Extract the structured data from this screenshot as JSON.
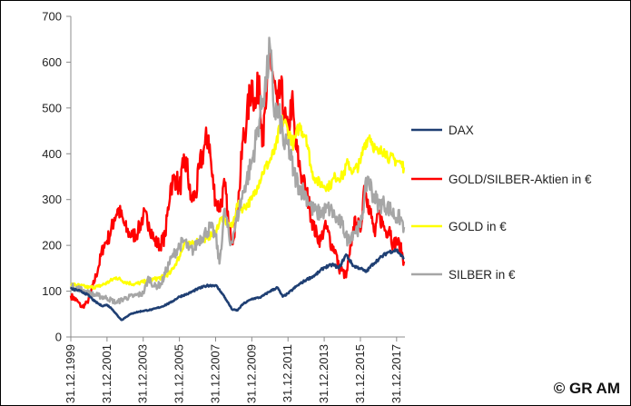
{
  "copyright": "© GR AM",
  "chart_data": {
    "type": "line",
    "title": "",
    "xlabel": "",
    "ylabel": "",
    "ylim": [
      0,
      700
    ],
    "yticks": [
      0,
      100,
      200,
      300,
      400,
      500,
      600,
      700
    ],
    "xlim": [
      1999.99,
      2018.45
    ],
    "xticks": [
      {
        "x": 1999.99,
        "label": "31.12.1999"
      },
      {
        "x": 2001.99,
        "label": "31.12.2001"
      },
      {
        "x": 2003.99,
        "label": "31.12.2003"
      },
      {
        "x": 2005.99,
        "label": "31.12.2005"
      },
      {
        "x": 2007.99,
        "label": "31.12.2007"
      },
      {
        "x": 2009.99,
        "label": "31.12.2009"
      },
      {
        "x": 2011.99,
        "label": "31.12.2011"
      },
      {
        "x": 2013.99,
        "label": "31.12.2013"
      },
      {
        "x": 2015.99,
        "label": "31.12.2015"
      },
      {
        "x": 2017.99,
        "label": "31.12.2017"
      }
    ],
    "grid": false,
    "legend_position": "right",
    "series": [
      {
        "name": "DAX",
        "color": "#1f3f73",
        "x": [
          1999.99,
          2000.3,
          2000.7,
          2001.0,
          2001.3,
          2001.7,
          2002.0,
          2002.3,
          2002.6,
          2002.8,
          2003.2,
          2003.5,
          2003.99,
          2004.5,
          2005.0,
          2005.5,
          2005.99,
          2006.5,
          2007.0,
          2007.5,
          2007.99,
          2008.3,
          2008.6,
          2008.9,
          2009.2,
          2009.5,
          2009.99,
          2010.5,
          2011.0,
          2011.4,
          2011.7,
          2011.99,
          2012.5,
          2013.0,
          2013.5,
          2013.99,
          2014.5,
          2014.8,
          2015.2,
          2015.6,
          2015.99,
          2016.3,
          2016.7,
          2017.0,
          2017.5,
          2017.99,
          2018.2,
          2018.4
        ],
        "values": [
          105,
          103,
          97,
          90,
          78,
          68,
          70,
          60,
          45,
          37,
          48,
          53,
          57,
          60,
          66,
          75,
          88,
          95,
          105,
          112,
          113,
          98,
          80,
          60,
          58,
          72,
          83,
          87,
          100,
          108,
          88,
          95,
          112,
          125,
          135,
          152,
          158,
          150,
          180,
          155,
          150,
          142,
          160,
          170,
          185,
          190,
          180,
          170
        ]
      },
      {
        "name": "GOLD/SILBER-Aktien in €",
        "color": "#ff0000",
        "x": [
          1999.99,
          2000.3,
          2000.6,
          2000.9,
          2001.2,
          2001.5,
          2001.8,
          2001.99,
          2002.2,
          2002.4,
          2002.6,
          2002.9,
          2003.1,
          2003.4,
          2003.7,
          2003.99,
          2004.3,
          2004.6,
          2004.9,
          2005.2,
          2005.5,
          2005.8,
          2005.99,
          2006.2,
          2006.4,
          2006.6,
          2006.9,
          2007.1,
          2007.4,
          2007.6,
          2007.8,
          2007.99,
          2008.2,
          2008.5,
          2008.7,
          2008.9,
          2009.1,
          2009.3,
          2009.5,
          2009.7,
          2009.99,
          2010.2,
          2010.4,
          2010.6,
          2010.8,
          2010.99,
          2011.2,
          2011.4,
          2011.6,
          2011.8,
          2011.99,
          2012.2,
          2012.4,
          2012.6,
          2012.8,
          2012.99,
          2013.2,
          2013.4,
          2013.6,
          2013.8,
          2013.99,
          2014.2,
          2014.4,
          2014.6,
          2014.8,
          2014.99,
          2015.2,
          2015.4,
          2015.6,
          2015.8,
          2015.99,
          2016.2,
          2016.4,
          2016.6,
          2016.8,
          2016.99,
          2017.2,
          2017.4,
          2017.6,
          2017.8,
          2017.99,
          2018.2,
          2018.4
        ],
        "values": [
          90,
          80,
          65,
          75,
          110,
          150,
          200,
          210,
          230,
          260,
          280,
          250,
          230,
          220,
          230,
          265,
          250,
          210,
          200,
          220,
          330,
          350,
          320,
          370,
          380,
          300,
          310,
          370,
          420,
          440,
          350,
          300,
          280,
          330,
          250,
          210,
          250,
          320,
          430,
          470,
          560,
          500,
          570,
          420,
          520,
          620,
          560,
          500,
          540,
          480,
          440,
          520,
          420,
          380,
          340,
          320,
          280,
          240,
          220,
          210,
          240,
          230,
          200,
          190,
          150,
          145,
          130,
          180,
          240,
          250,
          230,
          330,
          300,
          260,
          220,
          270,
          250,
          230,
          240,
          200,
          210,
          195,
          165
        ]
      },
      {
        "name": "GOLD in €",
        "color": "#ffff00",
        "x": [
          1999.99,
          2000.5,
          2001.0,
          2001.5,
          2001.99,
          2002.5,
          2003.0,
          2003.5,
          2003.99,
          2004.5,
          2005.0,
          2005.5,
          2005.99,
          2006.3,
          2006.6,
          2007.0,
          2007.5,
          2007.99,
          2008.3,
          2008.6,
          2008.9,
          2009.2,
          2009.5,
          2009.99,
          2010.3,
          2010.6,
          2010.99,
          2011.3,
          2011.6,
          2011.8,
          2011.99,
          2012.3,
          2012.6,
          2012.99,
          2013.3,
          2013.6,
          2013.99,
          2014.3,
          2014.6,
          2014.99,
          2015.3,
          2015.6,
          2015.99,
          2016.2,
          2016.5,
          2016.8,
          2016.99,
          2017.3,
          2017.6,
          2017.99,
          2018.2,
          2018.4
        ],
        "values": [
          115,
          112,
          108,
          110,
          118,
          130,
          120,
          115,
          120,
          125,
          130,
          140,
          175,
          210,
          200,
          210,
          215,
          230,
          260,
          250,
          240,
          290,
          280,
          300,
          330,
          360,
          385,
          410,
          470,
          470,
          450,
          420,
          460,
          440,
          360,
          340,
          330,
          330,
          350,
          350,
          380,
          360,
          380,
          420,
          440,
          410,
          400,
          410,
          390,
          385,
          380,
          370
        ]
      },
      {
        "name": "SILBER in €",
        "color": "#a6a6a6",
        "x": [
          1999.99,
          2000.5,
          2001.0,
          2001.5,
          2001.99,
          2002.5,
          2003.0,
          2003.5,
          2003.99,
          2004.3,
          2004.6,
          2004.99,
          2005.3,
          2005.6,
          2005.99,
          2006.3,
          2006.5,
          2006.8,
          2007.0,
          2007.5,
          2007.7,
          2007.99,
          2008.2,
          2008.5,
          2008.8,
          2009.0,
          2009.3,
          2009.6,
          2009.99,
          2010.3,
          2010.6,
          2010.8,
          2010.99,
          2011.2,
          2011.4,
          2011.6,
          2011.8,
          2011.99,
          2012.3,
          2012.6,
          2012.99,
          2013.3,
          2013.6,
          2013.99,
          2014.3,
          2014.6,
          2014.99,
          2015.3,
          2015.6,
          2015.99,
          2016.2,
          2016.4,
          2016.7,
          2016.99,
          2017.3,
          2017.6,
          2017.99,
          2018.2,
          2018.4
        ],
        "values": [
          110,
          105,
          95,
          90,
          85,
          75,
          85,
          90,
          95,
          130,
          110,
          115,
          150,
          175,
          200,
          210,
          190,
          190,
          210,
          230,
          240,
          220,
          160,
          280,
          200,
          230,
          280,
          330,
          380,
          450,
          520,
          560,
          635,
          500,
          490,
          470,
          410,
          420,
          360,
          330,
          310,
          280,
          270,
          275,
          280,
          260,
          245,
          210,
          230,
          240,
          300,
          350,
          310,
          290,
          290,
          280,
          260,
          260,
          240
        ]
      }
    ]
  }
}
